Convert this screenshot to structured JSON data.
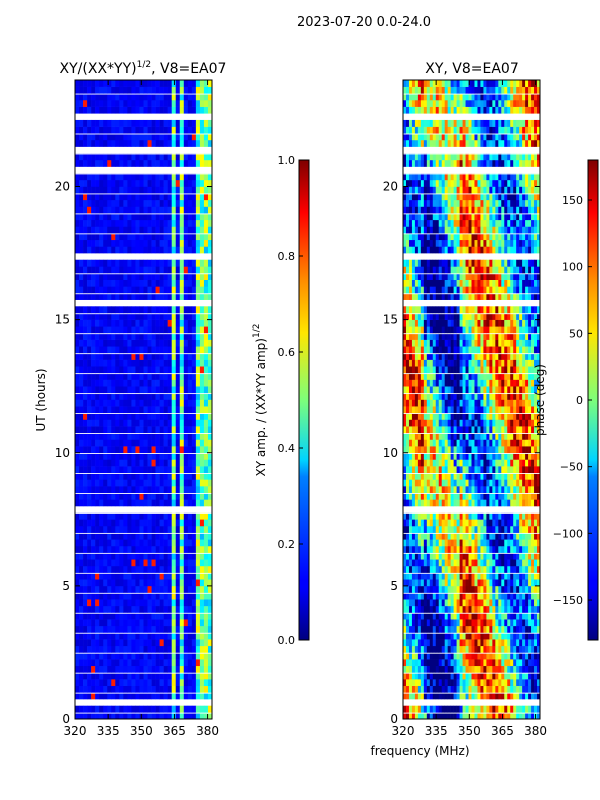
{
  "figure": {
    "suptitle": "2023-07-20 0.0-24.0",
    "xlabel": "frequency (MHz)"
  },
  "chart_data": [
    {
      "type": "heatmap",
      "title_main": "XY/(XX*YY)",
      "title_sup": "1/2",
      "title_rest": ", V8=EA07",
      "xlabel": "frequency (MHz)",
      "ylabel": "UT (hours)",
      "xlim": [
        320,
        382
      ],
      "ylim": [
        0,
        24
      ],
      "xticks": [
        320,
        335,
        350,
        365,
        380
      ],
      "yticks": [
        0,
        5,
        10,
        15,
        20
      ],
      "colorbar": {
        "label_main": "XY amp. / (XX*YY amp)",
        "label_sup": "1/2",
        "range": [
          0.0,
          1.0
        ],
        "ticks": [
          "0.0",
          "0.2",
          "0.4",
          "0.6",
          "0.8",
          "1.0"
        ],
        "colormap": "jet"
      },
      "bright_bands_mhz": [
        [
          363,
          366
        ],
        [
          367,
          369.5
        ],
        [
          375,
          378
        ],
        [
          379,
          382
        ]
      ],
      "flagged_rows_ut_hours": [
        22.7,
        21.3,
        20.6,
        17.3,
        15.6,
        7.8,
        0.6
      ]
    },
    {
      "type": "heatmap",
      "title": "XY, V8=EA07",
      "xlabel": "frequency (MHz)",
      "ylabel": "",
      "xlim": [
        320,
        382
      ],
      "ylim": [
        0,
        24
      ],
      "xticks": [
        320,
        335,
        350,
        365,
        380
      ],
      "yticks": [
        0,
        5,
        10,
        15,
        20
      ],
      "colorbar": {
        "label": "phase (deg)",
        "range": [
          -180,
          180
        ],
        "ticks": [
          "150",
          "100",
          "50",
          "0",
          "−50",
          "−100",
          "−150"
        ],
        "tick_values": [
          150,
          100,
          50,
          0,
          -50,
          -100,
          -150
        ],
        "colormap": "jet"
      },
      "flagged_rows_ut_hours": [
        22.7,
        21.3,
        20.6,
        17.3,
        15.6,
        7.8,
        0.6
      ]
    }
  ]
}
